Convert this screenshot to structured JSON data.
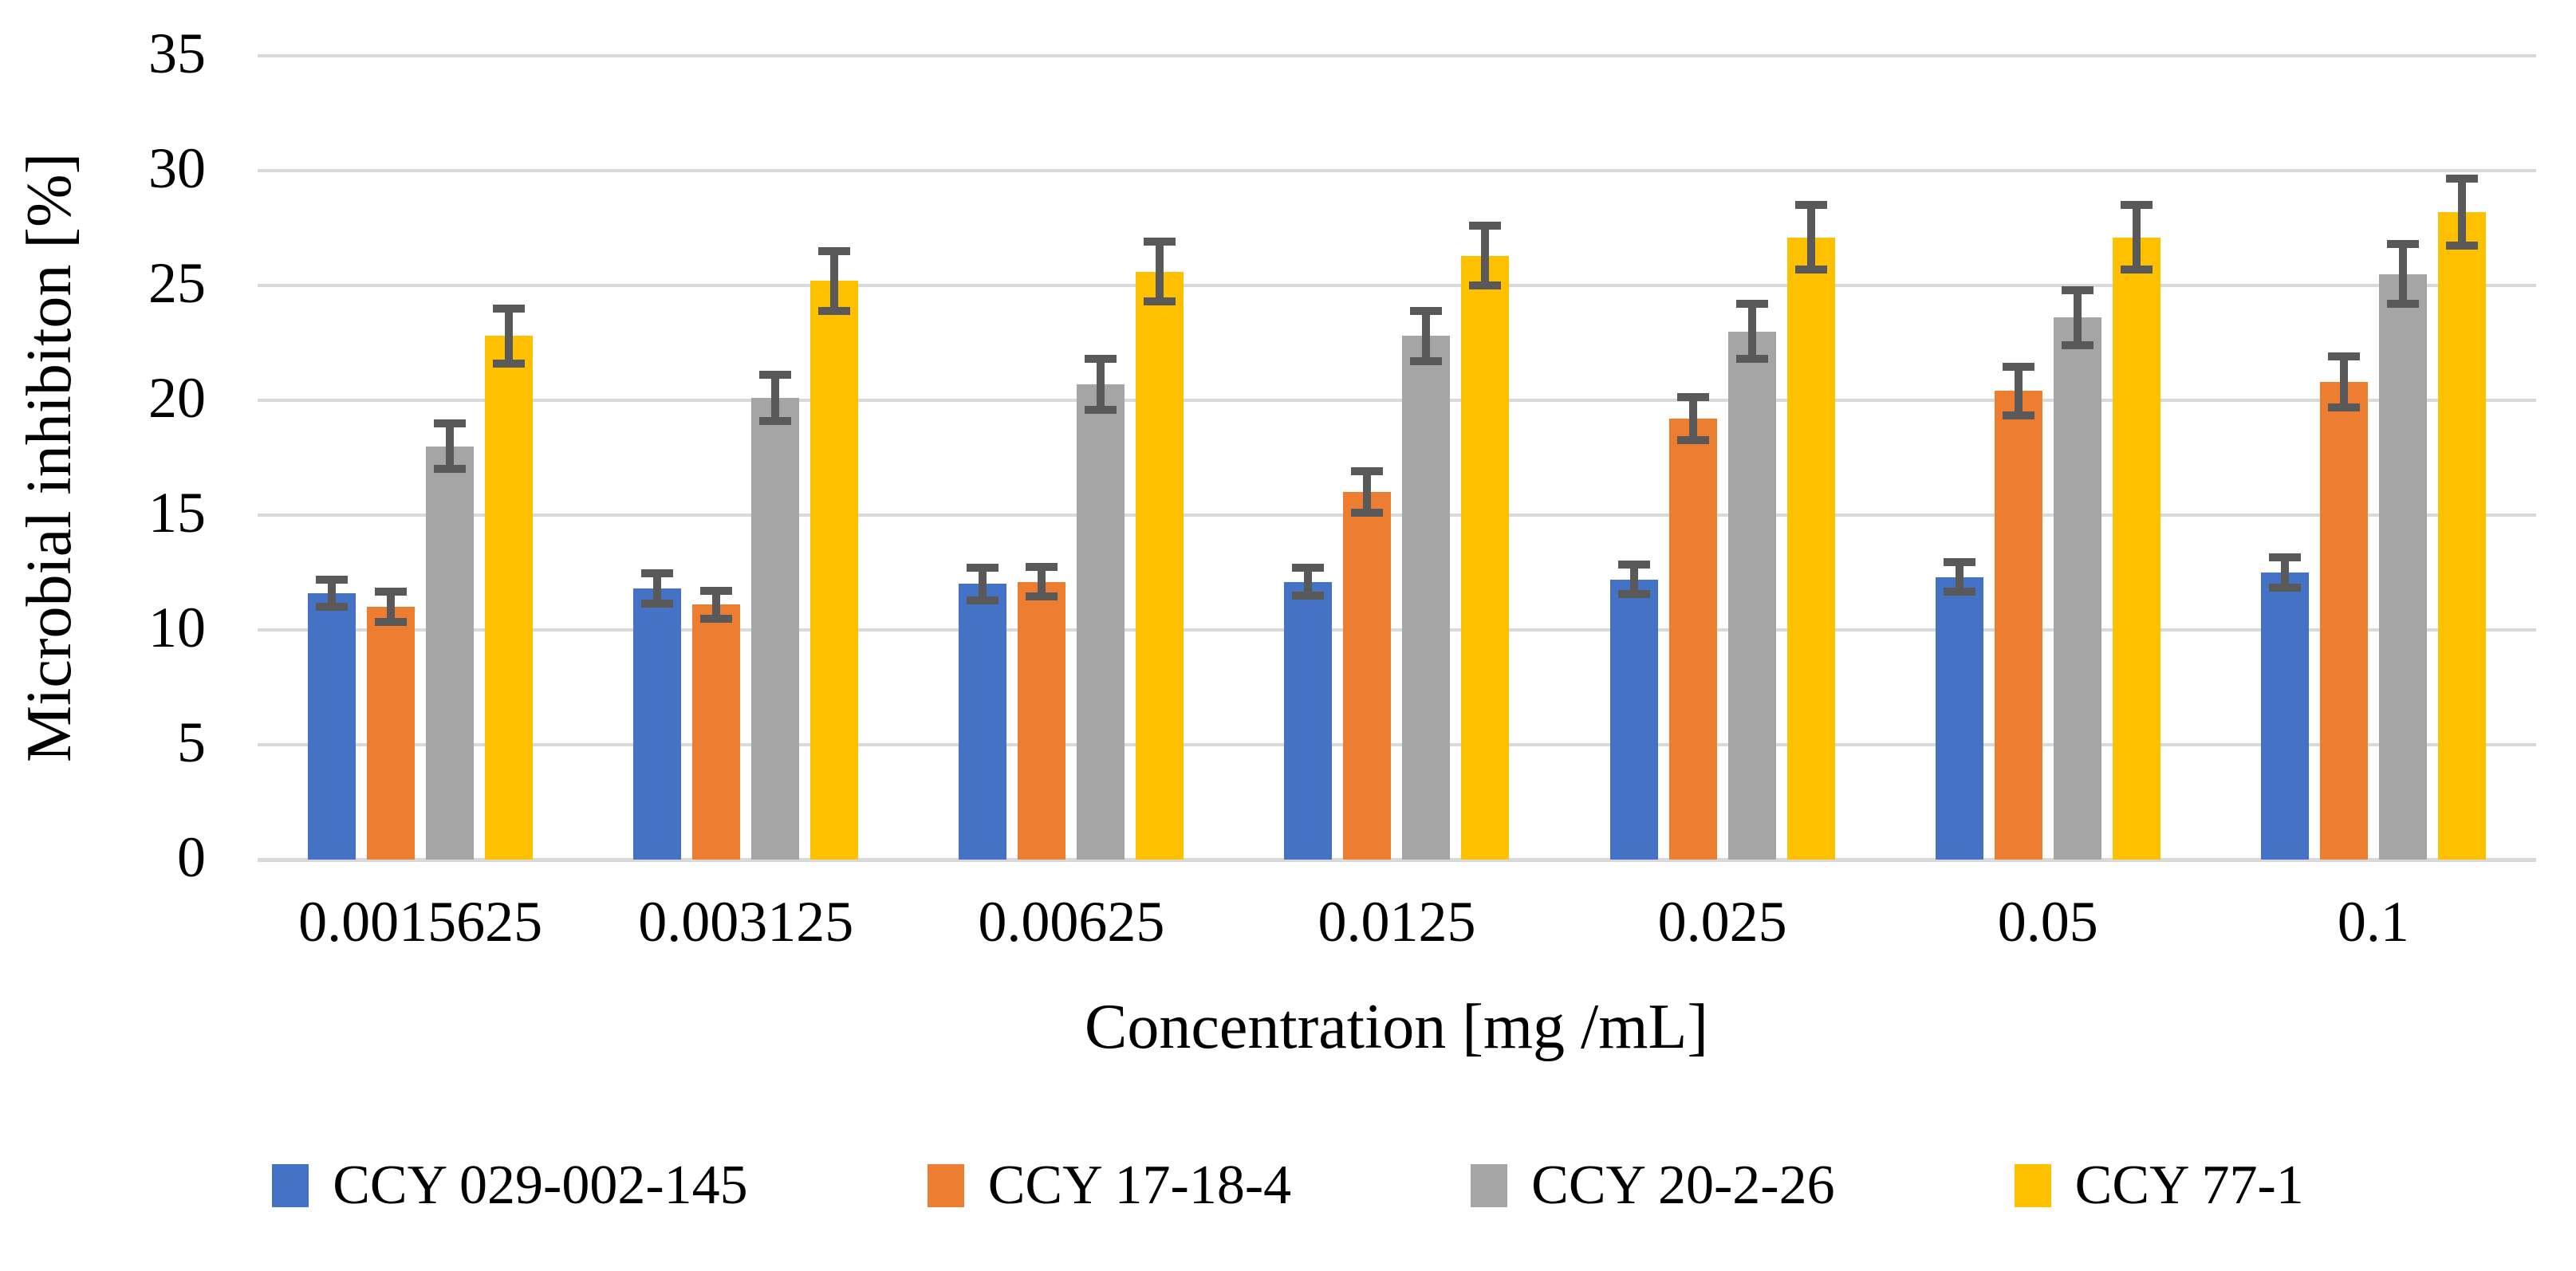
{
  "chart_data": {
    "type": "bar",
    "title": "",
    "xlabel": "Concentration [mg /mL]",
    "ylabel": "Microbial inhibiton [%]",
    "ylim": [
      0,
      35
    ],
    "yticks": [
      0,
      5,
      10,
      15,
      20,
      25,
      30,
      35
    ],
    "grid": true,
    "legend_position": "bottom",
    "gridline_color": "#D9D9D9",
    "error_bar_color": "#595959",
    "categories": [
      "0.0015625",
      "0.003125",
      "0.00625",
      "0.0125",
      "0.025",
      "0.05",
      "0.1"
    ],
    "series": [
      {
        "name": "CCY 029-002-145",
        "color": "#4472C4",
        "values": [
          11.6,
          11.8,
          12.0,
          12.1,
          12.2,
          12.3,
          12.5
        ],
        "errors": [
          0.6,
          0.65,
          0.7,
          0.6,
          0.65,
          0.65,
          0.65
        ]
      },
      {
        "name": "CCY 17-18-4",
        "color": "#ED7D31",
        "values": [
          11.0,
          11.1,
          12.1,
          16.0,
          19.2,
          20.4,
          20.8
        ],
        "errors": [
          0.65,
          0.6,
          0.65,
          0.9,
          0.95,
          1.05,
          1.1
        ]
      },
      {
        "name": "CCY 20-2-26",
        "color": "#A5A5A5",
        "values": [
          18.0,
          20.1,
          20.7,
          22.8,
          23.0,
          23.6,
          25.5
        ],
        "errors": [
          1.0,
          1.0,
          1.1,
          1.1,
          1.2,
          1.2,
          1.3
        ]
      },
      {
        "name": "CCY 77-1",
        "color": "#FFC000",
        "values": [
          22.8,
          25.2,
          25.6,
          26.3,
          27.1,
          27.1,
          28.2
        ],
        "errors": [
          1.2,
          1.3,
          1.3,
          1.3,
          1.4,
          1.4,
          1.45
        ]
      }
    ]
  }
}
